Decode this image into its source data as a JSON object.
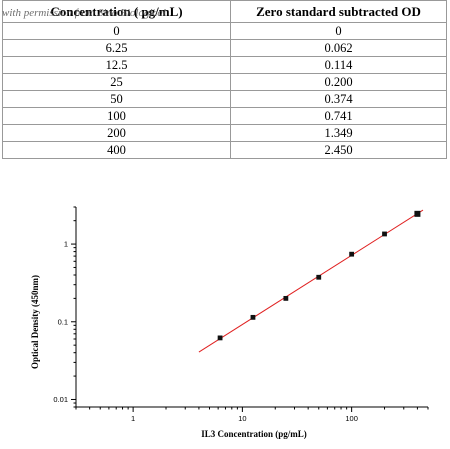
{
  "table": {
    "headers": [
      "Concentration ( pg/mL)",
      "Zero standard subtracted OD"
    ],
    "rows": [
      [
        "0",
        "0"
      ],
      [
        "6.25",
        "0.062"
      ],
      [
        "12.5",
        "0.114"
      ],
      [
        "25",
        "0.200"
      ],
      [
        "50",
        "0.374"
      ],
      [
        "100",
        "0.741"
      ],
      [
        "200",
        "1.349"
      ],
      [
        "400",
        "2.450"
      ]
    ]
  },
  "watermark": "with permission from Sino Biological",
  "chart_data": {
    "type": "scatter",
    "xlabel": "IL3 Concentration (pg/mL)",
    "ylabel": "Optical Density (450nm)",
    "xscale": "log",
    "yscale": "log",
    "xlim": [
      0.3,
      500
    ],
    "ylim": [
      0.008,
      3
    ],
    "xticks": [
      1,
      10,
      100
    ],
    "xtick_labels": [
      "1",
      "10",
      "100"
    ],
    "yticks": [
      0.01,
      0.1,
      1
    ],
    "ytick_labels": [
      "0.01",
      "0.1",
      "1"
    ],
    "grid": false,
    "series": [
      {
        "x": [
          6.25,
          12.5,
          25,
          50,
          100,
          200,
          400
        ],
        "y": [
          0.062,
          0.114,
          0.2,
          0.374,
          0.741,
          1.349,
          2.45
        ],
        "marker_color": "#111111"
      }
    ],
    "fit_line": {
      "x": [
        4,
        450
      ],
      "color": "#e02020"
    }
  }
}
